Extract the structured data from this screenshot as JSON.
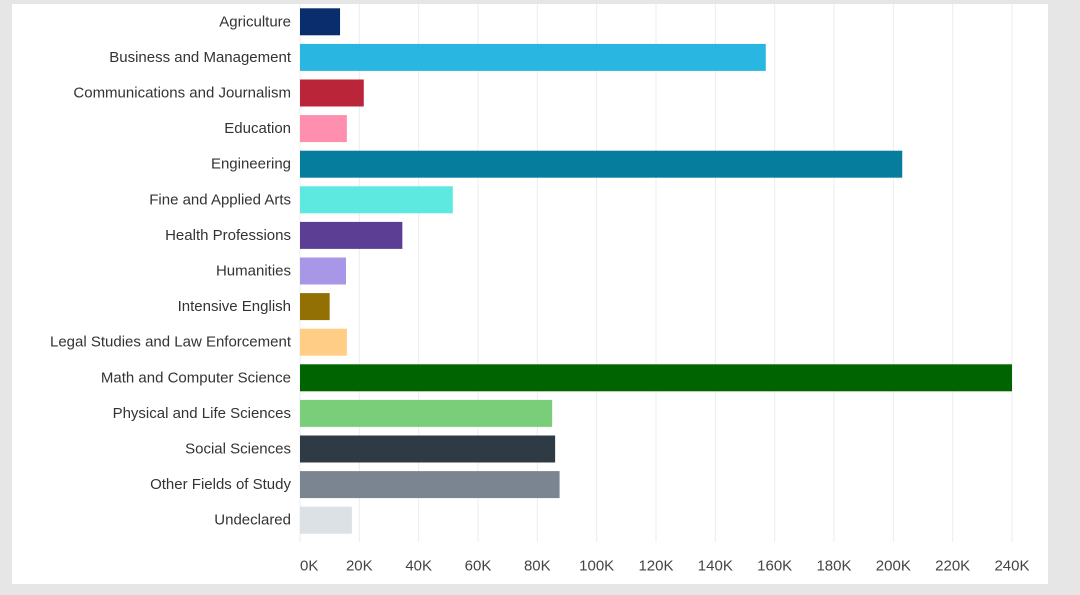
{
  "chart_data": {
    "type": "bar",
    "orientation": "horizontal",
    "title": "",
    "xlabel": "",
    "ylabel": "",
    "xlim": [
      0,
      240000
    ],
    "grid": true,
    "categories": [
      "Agriculture",
      "Business and Management",
      "Communications and Journalism",
      "Education",
      "Engineering",
      "Fine and Applied Arts",
      "Health Professions",
      "Humanities",
      "Intensive English",
      "Legal Studies and Law Enforcement",
      "Math and Computer Science",
      "Physical and Life Sciences",
      "Social Sciences",
      "Other Fields of Study",
      "Undeclared"
    ],
    "values": [
      13500,
      157000,
      21500,
      15800,
      203000,
      51500,
      34500,
      15500,
      10000,
      15800,
      240000,
      85000,
      86000,
      87500,
      17500
    ],
    "colors": [
      "#0a2d6e",
      "#29b6e0",
      "#bb2539",
      "#ff8fae",
      "#077d9d",
      "#5de8e0",
      "#5c3f95",
      "#a896e6",
      "#927004",
      "#ffcd85",
      "#006400",
      "#7bce79",
      "#2f3b44",
      "#7a8591",
      "#dce1e5"
    ],
    "x_ticks": [
      0,
      20000,
      40000,
      60000,
      80000,
      100000,
      120000,
      140000,
      160000,
      180000,
      200000,
      220000,
      240000
    ],
    "x_tick_labels": [
      "0K",
      "20K",
      "40K",
      "60K",
      "80K",
      "100K",
      "120K",
      "140K",
      "160K",
      "180K",
      "200K",
      "220K",
      "240K"
    ]
  }
}
